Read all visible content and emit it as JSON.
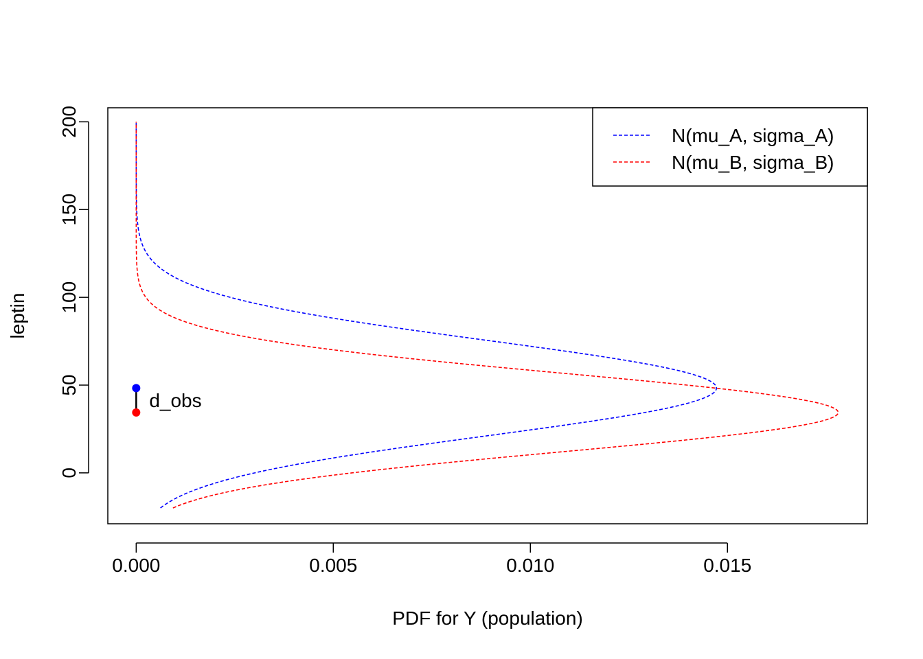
{
  "chart_data": {
    "type": "line",
    "title": "",
    "xlabel": "PDF for Y (population)",
    "ylabel": "leptin",
    "xlim": [
      -0.00072,
      0.01855
    ],
    "ylim": [
      -29,
      208
    ],
    "x_ticks": [
      0.0,
      0.005,
      0.01,
      0.015
    ],
    "x_tick_labels": [
      "0.000",
      "0.005",
      "0.010",
      "0.015"
    ],
    "y_ticks": [
      0,
      50,
      100,
      150,
      200
    ],
    "y_tick_labels": [
      "0",
      "50",
      "100",
      "150",
      "200"
    ],
    "y_range": [
      -20,
      200
    ],
    "grid": false,
    "legend_position": "top-right",
    "series": [
      {
        "name": "N(mu_A, sigma_A)",
        "color": "#0000ff",
        "line_style": "dashed",
        "mu": 48.3,
        "sigma": 27.1
      },
      {
        "name": "N(mu_B, sigma_B)",
        "color": "#ff0000",
        "line_style": "dashed",
        "mu": 34.4,
        "sigma": 22.4
      }
    ],
    "annotation": {
      "label": "d_obs",
      "x": 0.0,
      "y_top": 48.3,
      "y_bottom": 34.4,
      "top_color": "#0000ff",
      "bottom_color": "#ff0000"
    }
  }
}
